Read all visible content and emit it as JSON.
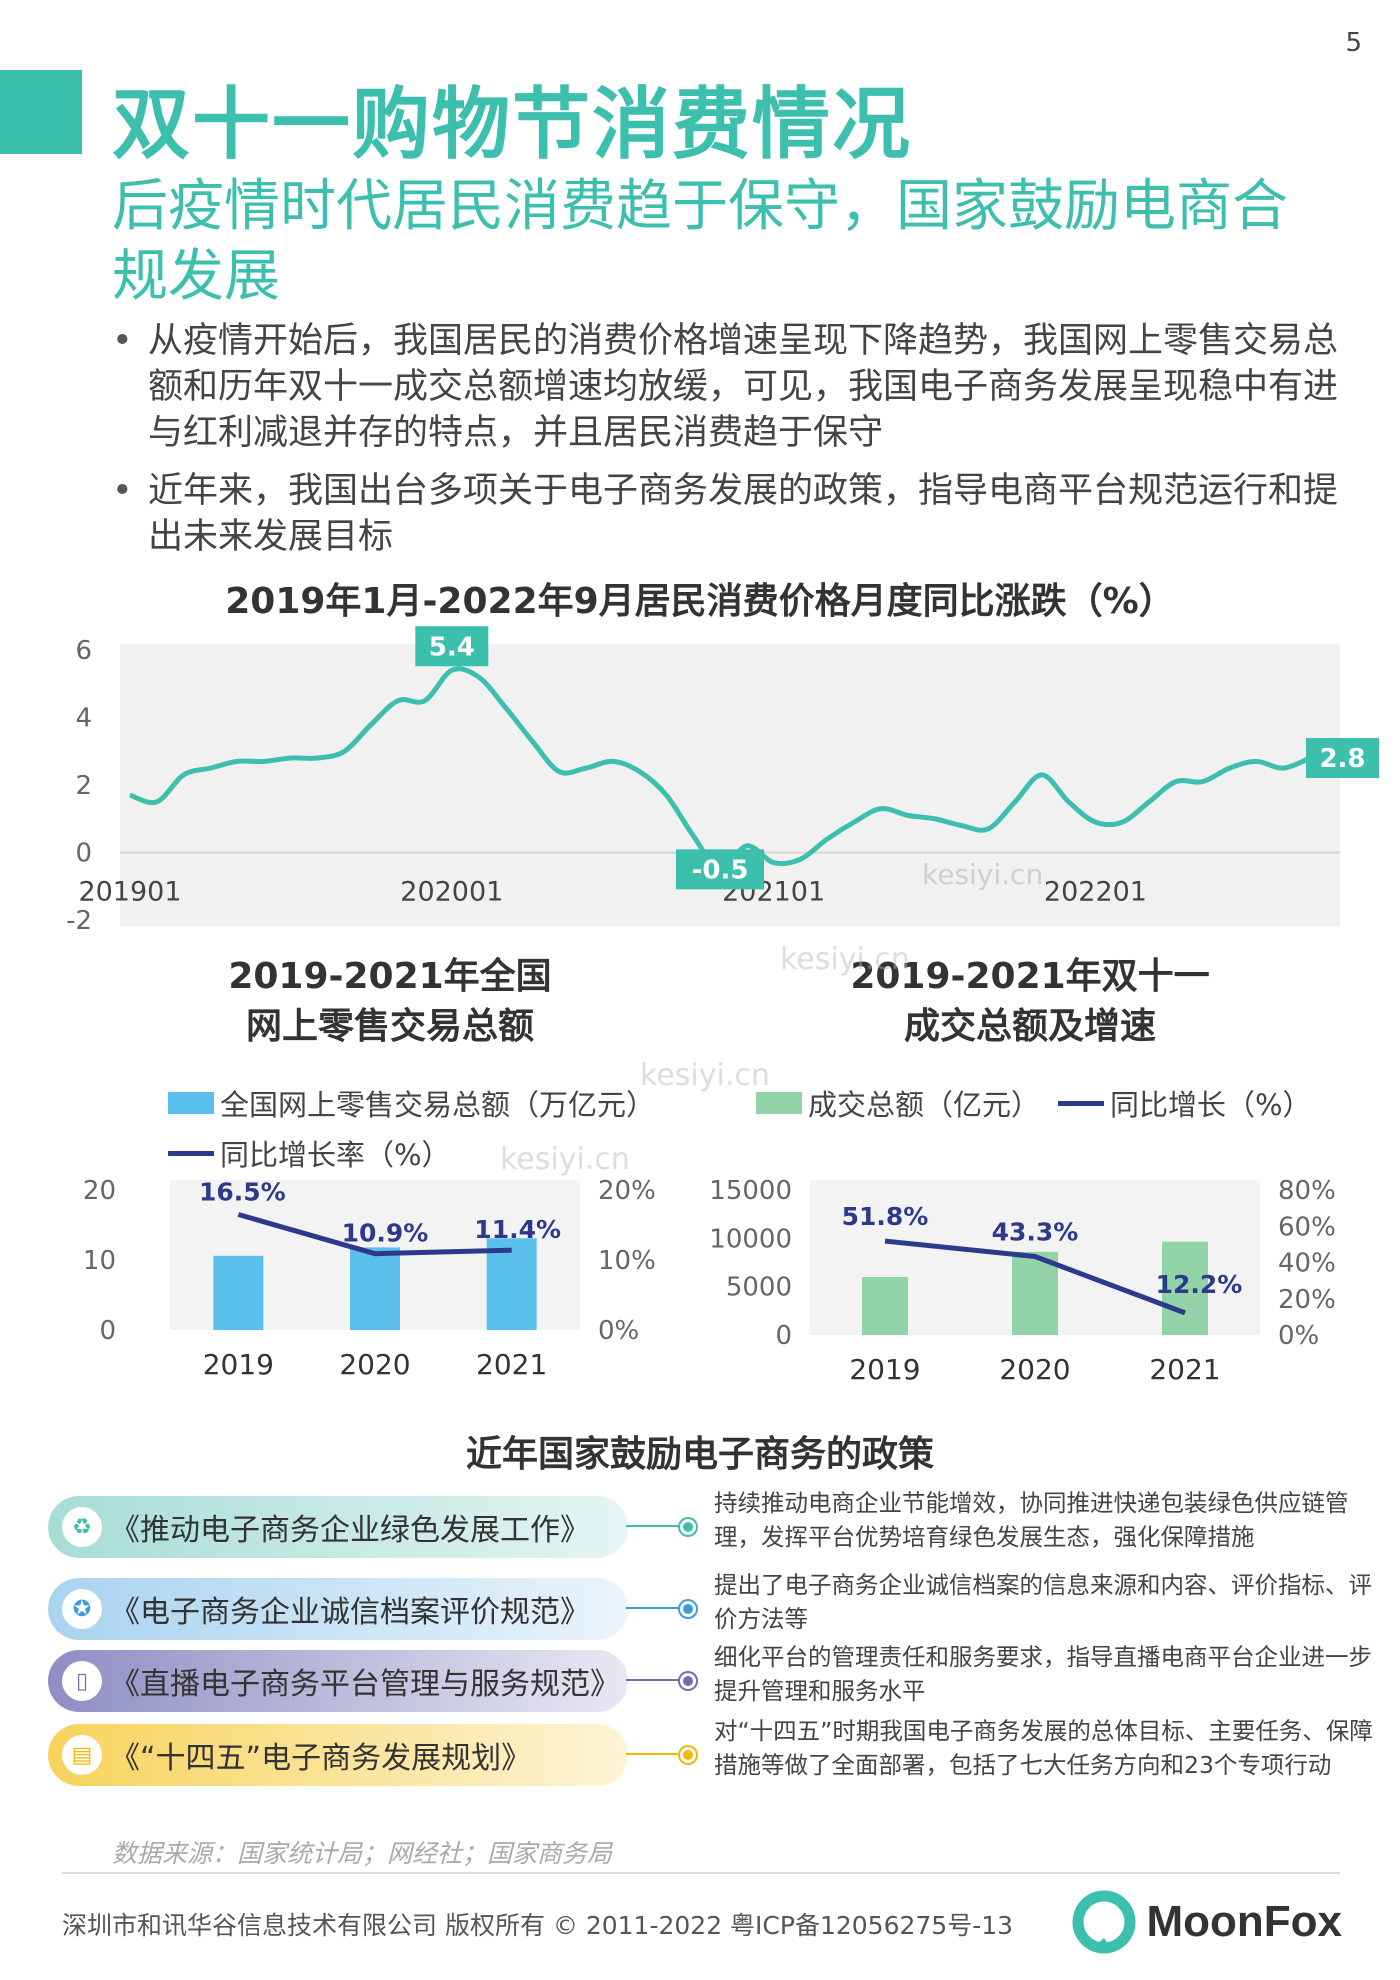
{
  "page_number": "5",
  "title": "双十一购物节消费情况",
  "subtitle": "后疫情时代居民消费趋于保守，国家鼓励电商合规发展",
  "bullets": [
    "从疫情开始后，我国居民的消费价格增速呈现下降趋势，我国网上零售交易总额和历年双十一成交总额增速均放缓，可见，我国电子商务发展呈现稳中有进与红利减退并存的特点，并且居民消费趋于保守",
    "近年来，我国出台多项关于电子商务发展的政策，指导电商平台规范运行和提出未来发展目标"
  ],
  "chart_data": [
    {
      "type": "line",
      "title": "2019年1月-2022年9月居民消费价格月度同比涨跌（%）",
      "x": [
        "201901",
        "201902",
        "201903",
        "201904",
        "201905",
        "201906",
        "201907",
        "201908",
        "201909",
        "201910",
        "201911",
        "201912",
        "202001",
        "202002",
        "202003",
        "202004",
        "202005",
        "202006",
        "202007",
        "202008",
        "202009",
        "202010",
        "202011",
        "202012",
        "202101",
        "202102",
        "202103",
        "202104",
        "202105",
        "202106",
        "202107",
        "202108",
        "202109",
        "202110",
        "202111",
        "202112",
        "202201",
        "202202",
        "202203",
        "202204",
        "202205",
        "202206",
        "202207",
        "202208",
        "202209"
      ],
      "y": [
        1.7,
        1.5,
        2.3,
        2.5,
        2.7,
        2.7,
        2.8,
        2.8,
        3.0,
        3.8,
        4.5,
        4.5,
        5.4,
        5.2,
        4.3,
        3.3,
        2.4,
        2.5,
        2.7,
        2.4,
        1.7,
        0.5,
        -0.5,
        0.2,
        -0.3,
        -0.2,
        0.4,
        0.9,
        1.3,
        1.1,
        1.0,
        0.8,
        0.7,
        1.5,
        2.3,
        1.5,
        0.9,
        0.9,
        1.5,
        2.1,
        2.1,
        2.5,
        2.7,
        2.5,
        2.8
      ],
      "xticks": [
        "201901",
        "202001",
        "202101",
        "202201"
      ],
      "yticks": [
        "6",
        "4",
        "2",
        "0",
        "-2"
      ],
      "ylim": [
        -2,
        6
      ],
      "data_labels": [
        {
          "x": "202001",
          "text": "5.4"
        },
        {
          "x": "202011",
          "text": "-0.5"
        },
        {
          "x": "202209",
          "text": "2.8"
        }
      ],
      "color": "#3dbfae",
      "grid": false
    },
    {
      "type": "bar",
      "title": "2019-2021年全国网上零售交易总额",
      "categories": [
        "2019",
        "2020",
        "2021"
      ],
      "series": [
        {
          "name": "全国网上零售交易总额（万亿元）",
          "values": [
            10.6,
            11.8,
            13.1
          ],
          "color": "#5bc0eb",
          "axis": "left"
        },
        {
          "name": "同比增长率（%）",
          "values": [
            16.5,
            10.9,
            11.4
          ],
          "labels": [
            "16.5%",
            "10.9%",
            "11.4%"
          ],
          "color": "#2d3a8c",
          "axis": "right",
          "kind": "line"
        }
      ],
      "ylim_left": [
        0,
        20
      ],
      "yticks_left": [
        "20",
        "10",
        "0"
      ],
      "ylim_right": [
        0,
        20
      ],
      "yticks_right": [
        "20%",
        "10%",
        "0%"
      ]
    },
    {
      "type": "bar",
      "title": "2019-2021年双十一成交总额及增速",
      "categories": [
        "2019",
        "2020",
        "2021"
      ],
      "series": [
        {
          "name": "成交总额（亿元）",
          "values": [
            6000,
            8600,
            9650
          ],
          "color": "#93d3a8",
          "axis": "left"
        },
        {
          "name": "同比增长（%）",
          "values": [
            51.8,
            43.3,
            12.2
          ],
          "labels": [
            "51.8%",
            "43.3%",
            "12.2%"
          ],
          "color": "#2d3a8c",
          "axis": "right",
          "kind": "line"
        }
      ],
      "ylim_left": [
        0,
        15000
      ],
      "yticks_left": [
        "15000",
        "10000",
        "5000",
        "0"
      ],
      "ylim_right": [
        0,
        80
      ],
      "yticks_right": [
        "80%",
        "60%",
        "40%",
        "20%",
        "0%"
      ]
    }
  ],
  "bar1_title_lines": [
    "2019-2021年全国",
    "网上零售交易总额"
  ],
  "bar2_title_lines": [
    "2019-2021年双十一",
    "成交总额及增速"
  ],
  "policy_section": {
    "title": "近年国家鼓励电子商务的政策",
    "items": [
      {
        "name": "《推动电子商务企业绿色发展工作》",
        "desc": "持续推动电商企业节能增效，协同推进快递包装绿色供应链管理，发挥平台优势培育绿色发展生态，强化保障措施",
        "color": "#3dbfae",
        "pill_color": "#c9ebe6",
        "icon": "recycle-icon",
        "glyph": "♻"
      },
      {
        "name": "《电子商务企业诚信档案评价规范》",
        "desc": "提出了电子商务企业诚信档案的信息来源和内容、评价指标、评价方法等",
        "color": "#3a9fd8",
        "pill_color": "#cfe6f6",
        "icon": "award-icon",
        "glyph": "✪"
      },
      {
        "name": "《直播电子商务平台管理与服务规范》",
        "desc": "细化平台的管理责任和服务要求，指导直播电商平台企业进一步提升管理和服务水平",
        "color": "#6f6fb0",
        "pill_color": "#dcdcef",
        "icon": "phone-icon",
        "glyph": "▯"
      },
      {
        "name": "《“十四五”电子商务发展规划》",
        "desc": "对“十四五”时期我国电子商务发展的总体目标、主要任务、保障措施等做了全面部署，包括了七大任务方向和23个专项行动",
        "color": "#f5b800",
        "pill_color": "#fcefc4",
        "icon": "document-icon",
        "glyph": "▤"
      }
    ]
  },
  "source": "数据来源：国家统计局；网经社；国家商务局",
  "footer": {
    "copyright": "深圳市和讯华谷信息技术有限公司 版权所有 © 2011-2022 粤ICP备12056275号-13",
    "logo": "MoonFox"
  },
  "watermark": "kesiyi.cn"
}
